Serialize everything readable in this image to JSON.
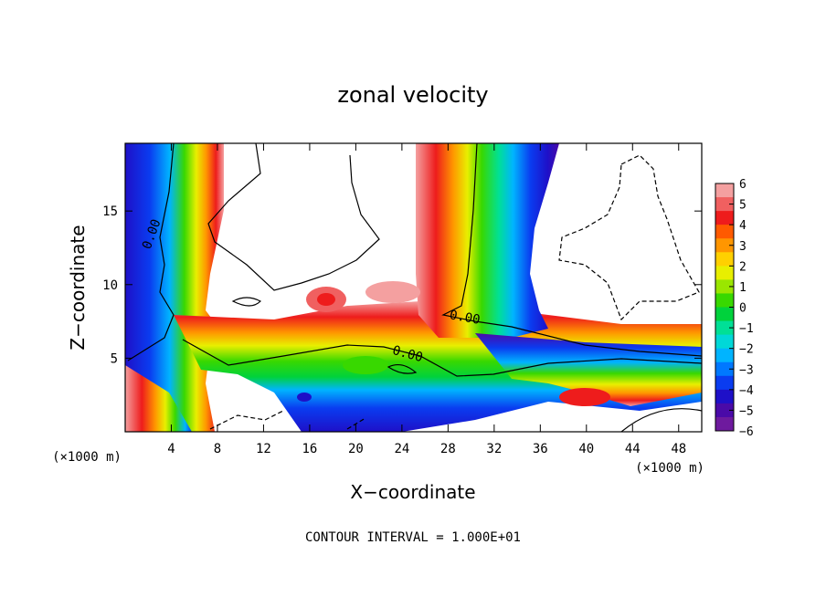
{
  "chart_data": {
    "type": "heatmap",
    "title": "zonal velocity",
    "xlabel": "X−coordinate",
    "ylabel": "Z−coordinate",
    "x_unit_label": "(×1000 m)",
    "z_unit_label": "(×1000 m)",
    "footer": "CONTOUR INTERVAL = 1.000E+01",
    "xlim": [
      0,
      50
    ],
    "ylim": [
      0,
      19.6
    ],
    "x_ticks": [
      4,
      8,
      12,
      16,
      20,
      24,
      28,
      32,
      36,
      40,
      44,
      48
    ],
    "y_ticks": [
      5,
      10,
      15
    ],
    "colorbar": {
      "ticks": [
        "6",
        "5",
        "4",
        "3",
        "2",
        "1",
        "0",
        "−1",
        "−2",
        "−3",
        "−4",
        "−5",
        "−6"
      ],
      "range": [
        -6,
        6
      ],
      "colors": [
        "#f4a0a0",
        "#f06060",
        "#ee1c1c",
        "#ff5a00",
        "#ff9600",
        "#ffd000",
        "#e8ef00",
        "#9ae600",
        "#38d800",
        "#00d23c",
        "#00e096",
        "#00d8d8",
        "#00b4ff",
        "#0078ff",
        "#0a3cf0",
        "#1e10c8",
        "#4a0aa8",
        "#6e1a9e"
      ]
    },
    "contour_labels": [
      "0.00",
      "0.00",
      "0.00"
    ]
  }
}
